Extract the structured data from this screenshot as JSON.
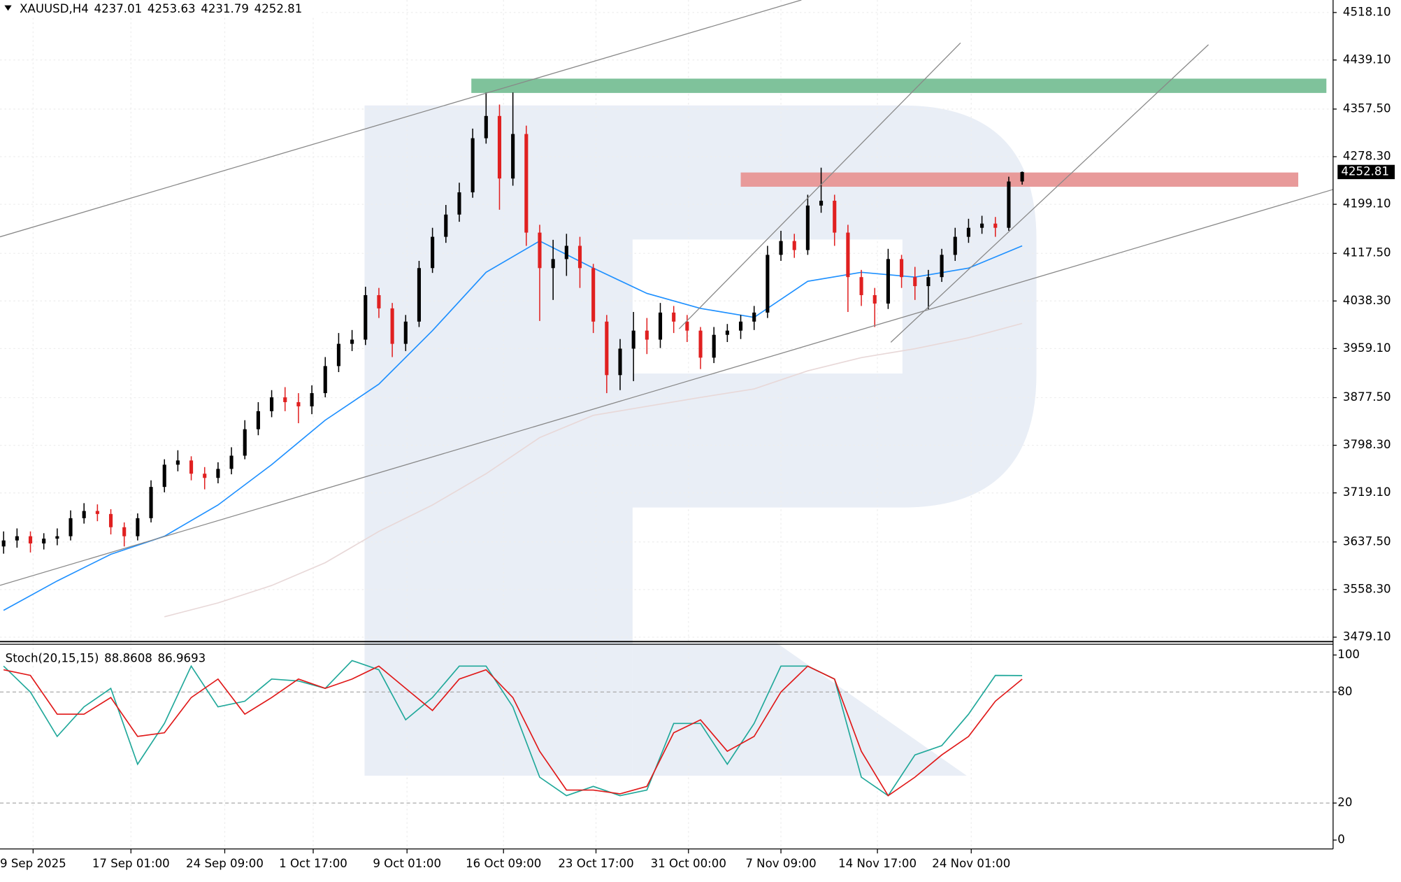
{
  "chart_data": [
    {
      "type": "candlestick",
      "symbol": "XAUUSD,H4",
      "up_color": "#000000",
      "down_color": "#e02020",
      "xlim": [
        -0.27,
        99.2
      ],
      "ylim": [
        3473.2,
        4538.9
      ],
      "yticks": [
        {
          "value": 4518.1,
          "label": "4518.10"
        },
        {
          "value": 4439.1,
          "label": "4439.10"
        },
        {
          "value": 4357.5,
          "label": "4357.50"
        },
        {
          "value": 4278.3,
          "label": "4278.30"
        },
        {
          "value": 4199.1,
          "label": "4199.10"
        },
        {
          "value": 4117.5,
          "label": "4117.50"
        },
        {
          "value": 4038.3,
          "label": "4038.30"
        },
        {
          "value": 3959.1,
          "label": "3959.10"
        },
        {
          "value": 3877.5,
          "label": "3877.50"
        },
        {
          "value": 3798.3,
          "label": "3798.30"
        },
        {
          "value": 3719.1,
          "label": "3719.10"
        },
        {
          "value": 3637.5,
          "label": "3637.50"
        },
        {
          "value": 3558.3,
          "label": "3558.30"
        },
        {
          "value": 3479.1,
          "label": "3479.10"
        }
      ],
      "xticks": [
        {
          "value": 2.2,
          "label": "9 Sep 2025"
        },
        {
          "value": 9.5,
          "label": "17 Sep 01:00"
        },
        {
          "value": 16.5,
          "label": "24 Sep 09:00"
        },
        {
          "value": 23.1,
          "label": "1 Oct 17:00"
        },
        {
          "value": 30.1,
          "label": "9 Oct 01:00"
        },
        {
          "value": 37.3,
          "label": "16 Oct 09:00"
        },
        {
          "value": 44.2,
          "label": "23 Oct 17:00"
        },
        {
          "value": 51.1,
          "label": "31 Oct 00:00"
        },
        {
          "value": 58.0,
          "label": "7 Nov 09:00"
        },
        {
          "value": 65.2,
          "label": "14 Nov 17:00"
        },
        {
          "value": 72.2,
          "label": "24 Nov 01:00"
        }
      ],
      "grid": true,
      "candles": [
        {
          "o": 3630,
          "h": 3655,
          "l": 3618,
          "c": 3640
        },
        {
          "o": 3640,
          "h": 3660,
          "l": 3628,
          "c": 3647
        },
        {
          "o": 3647,
          "h": 3655,
          "l": 3620,
          "c": 3635
        },
        {
          "o": 3635,
          "h": 3652,
          "l": 3625,
          "c": 3643
        },
        {
          "o": 3643,
          "h": 3660,
          "l": 3632,
          "c": 3647
        },
        {
          "o": 3647,
          "h": 3690,
          "l": 3640,
          "c": 3677
        },
        {
          "o": 3677,
          "h": 3702,
          "l": 3668,
          "c": 3689
        },
        {
          "o": 3689,
          "h": 3700,
          "l": 3672,
          "c": 3684
        },
        {
          "o": 3684,
          "h": 3692,
          "l": 3650,
          "c": 3662
        },
        {
          "o": 3662,
          "h": 3670,
          "l": 3630,
          "c": 3647
        },
        {
          "o": 3647,
          "h": 3685,
          "l": 3640,
          "c": 3677
        },
        {
          "o": 3677,
          "h": 3740,
          "l": 3670,
          "c": 3729
        },
        {
          "o": 3729,
          "h": 3775,
          "l": 3720,
          "c": 3766
        },
        {
          "o": 3766,
          "h": 3790,
          "l": 3755,
          "c": 3773
        },
        {
          "o": 3773,
          "h": 3780,
          "l": 3740,
          "c": 3751
        },
        {
          "o": 3751,
          "h": 3762,
          "l": 3725,
          "c": 3744
        },
        {
          "o": 3744,
          "h": 3770,
          "l": 3735,
          "c": 3759
        },
        {
          "o": 3759,
          "h": 3795,
          "l": 3750,
          "c": 3781
        },
        {
          "o": 3781,
          "h": 3840,
          "l": 3775,
          "c": 3825
        },
        {
          "o": 3825,
          "h": 3870,
          "l": 3815,
          "c": 3855
        },
        {
          "o": 3855,
          "h": 3890,
          "l": 3845,
          "c": 3878
        },
        {
          "o": 3878,
          "h": 3895,
          "l": 3855,
          "c": 3870
        },
        {
          "o": 3870,
          "h": 3885,
          "l": 3835,
          "c": 3863
        },
        {
          "o": 3863,
          "h": 3898,
          "l": 3850,
          "c": 3885
        },
        {
          "o": 3885,
          "h": 3945,
          "l": 3878,
          "c": 3930
        },
        {
          "o": 3930,
          "h": 3985,
          "l": 3920,
          "c": 3967
        },
        {
          "o": 3967,
          "h": 3990,
          "l": 3955,
          "c": 3974
        },
        {
          "o": 3974,
          "h": 4062,
          "l": 3965,
          "c": 4048
        },
        {
          "o": 4048,
          "h": 4060,
          "l": 4010,
          "c": 4026
        },
        {
          "o": 4026,
          "h": 4035,
          "l": 3945,
          "c": 3967
        },
        {
          "o": 3967,
          "h": 4015,
          "l": 3955,
          "c": 4004
        },
        {
          "o": 4004,
          "h": 4105,
          "l": 3995,
          "c": 4093
        },
        {
          "o": 4093,
          "h": 4160,
          "l": 4085,
          "c": 4145
        },
        {
          "o": 4145,
          "h": 4198,
          "l": 4135,
          "c": 4182
        },
        {
          "o": 4182,
          "h": 4235,
          "l": 4170,
          "c": 4219
        },
        {
          "o": 4219,
          "h": 4325,
          "l": 4210,
          "c": 4309
        },
        {
          "o": 4309,
          "h": 4385,
          "l": 4300,
          "c": 4346
        },
        {
          "o": 4346,
          "h": 4365,
          "l": 4190,
          "c": 4242
        },
        {
          "o": 4242,
          "h": 4385,
          "l": 4230,
          "c": 4316
        },
        {
          "o": 4316,
          "h": 4330,
          "l": 4130,
          "c": 4152
        },
        {
          "o": 4152,
          "h": 4165,
          "l": 4005,
          "c": 4093
        },
        {
          "o": 4093,
          "h": 4140,
          "l": 4040,
          "c": 4108
        },
        {
          "o": 4108,
          "h": 4150,
          "l": 4080,
          "c": 4130
        },
        {
          "o": 4130,
          "h": 4145,
          "l": 4060,
          "c": 4093
        },
        {
          "o": 4093,
          "h": 4100,
          "l": 3985,
          "c": 4004
        },
        {
          "o": 4004,
          "h": 4015,
          "l": 3885,
          "c": 3915
        },
        {
          "o": 3915,
          "h": 3975,
          "l": 3890,
          "c": 3959
        },
        {
          "o": 3959,
          "h": 4020,
          "l": 3905,
          "c": 3989
        },
        {
          "o": 3989,
          "h": 4010,
          "l": 3950,
          "c": 3974
        },
        {
          "o": 3974,
          "h": 4035,
          "l": 3960,
          "c": 4019
        },
        {
          "o": 4019,
          "h": 4030,
          "l": 3985,
          "c": 4004
        },
        {
          "o": 4004,
          "h": 4015,
          "l": 3970,
          "c": 3989
        },
        {
          "o": 3989,
          "h": 3995,
          "l": 3925,
          "c": 3944
        },
        {
          "o": 3944,
          "h": 3995,
          "l": 3935,
          "c": 3982
        },
        {
          "o": 3982,
          "h": 4000,
          "l": 3970,
          "c": 3989
        },
        {
          "o": 3989,
          "h": 4015,
          "l": 3975,
          "c": 4004
        },
        {
          "o": 4004,
          "h": 4030,
          "l": 3990,
          "c": 4019
        },
        {
          "o": 4019,
          "h": 4130,
          "l": 4010,
          "c": 4115
        },
        {
          "o": 4115,
          "h": 4155,
          "l": 4105,
          "c": 4138
        },
        {
          "o": 4138,
          "h": 4150,
          "l": 4110,
          "c": 4123
        },
        {
          "o": 4123,
          "h": 4215,
          "l": 4115,
          "c": 4197
        },
        {
          "o": 4197,
          "h": 4260,
          "l": 4185,
          "c": 4205
        },
        {
          "o": 4205,
          "h": 4215,
          "l": 4130,
          "c": 4152
        },
        {
          "o": 4152,
          "h": 4165,
          "l": 4020,
          "c": 4078
        },
        {
          "o": 4078,
          "h": 4090,
          "l": 4030,
          "c": 4048
        },
        {
          "o": 4048,
          "h": 4060,
          "l": 3995,
          "c": 4034
        },
        {
          "o": 4034,
          "h": 4125,
          "l": 4025,
          "c": 4108
        },
        {
          "o": 4108,
          "h": 4115,
          "l": 4060,
          "c": 4078
        },
        {
          "o": 4078,
          "h": 4095,
          "l": 4040,
          "c": 4063
        },
        {
          "o": 4063,
          "h": 4090,
          "l": 4025,
          "c": 4078
        },
        {
          "o": 4078,
          "h": 4125,
          "l": 4070,
          "c": 4115
        },
        {
          "o": 4115,
          "h": 4160,
          "l": 4105,
          "c": 4145
        },
        {
          "o": 4145,
          "h": 4175,
          "l": 4135,
          "c": 4160
        },
        {
          "o": 4160,
          "h": 4180,
          "l": 4150,
          "c": 4167
        },
        {
          "o": 4167,
          "h": 4178,
          "l": 4145,
          "c": 4160
        },
        {
          "o": 4160,
          "h": 4245,
          "l": 4155,
          "c": 4237.01
        },
        {
          "o": 4237.01,
          "h": 4253.63,
          "l": 4231.79,
          "c": 4252.81
        }
      ],
      "series": [
        {
          "color": "#1e90ff",
          "x": [
            0,
            4,
            8,
            12,
            16,
            20,
            24,
            28,
            32,
            36,
            40,
            44,
            48,
            52,
            56,
            60,
            64,
            68,
            72,
            76
          ],
          "values": [
            3523.7,
            3572.7,
            3617,
            3647,
            3699,
            3766,
            3840,
            3900,
            3989,
            4086,
            4138,
            4093,
            4051,
            4026,
            4011,
            4071,
            4086,
            4078,
            4093,
            4130
          ]
        },
        {
          "color": "#e8d8d8",
          "x": [
            12,
            16,
            20,
            24,
            28,
            32,
            36,
            40,
            44,
            48,
            52,
            56,
            60,
            64,
            68,
            72,
            76
          ],
          "values": [
            3513,
            3536,
            3565,
            3603,
            3655,
            3699,
            3751,
            3811,
            3848,
            3863,
            3878,
            3892,
            3922,
            3944,
            3959,
            3977,
            4001
          ]
        }
      ],
      "zones": [
        {
          "low": 4384.3,
          "high": 4408.1,
          "start": 34.9,
          "end": 98.7,
          "color": "#7fc29b"
        },
        {
          "low": 4228.3,
          "high": 4252,
          "start": 55,
          "end": 96.6,
          "color": "#e89a9a"
        }
      ],
      "trendlines": [
        {
          "points": [
            [
              -0.27,
              4145.0
            ],
            [
              59.53,
              4538.9
            ]
          ]
        },
        {
          "points": [
            [
              -0.27,
              3565.3
            ],
            [
              99.2,
              4223.8
            ]
          ]
        },
        {
          "points": [
            [
              50.4,
              3991.9
            ],
            [
              71.4,
              4467.6
            ]
          ]
        },
        {
          "points": [
            [
              66.2,
              3969.6
            ],
            [
              89.9,
              4464.6
            ]
          ]
        }
      ]
    },
    {
      "type": "line",
      "title": "Stoch(20,15,15)",
      "xlim": [
        -0.27,
        99.2
      ],
      "ylim": [
        -4.8,
        105.3
      ],
      "yticks": [
        100,
        80,
        20,
        0
      ],
      "levels": [
        80,
        20
      ],
      "x": [
        0,
        2,
        4,
        6,
        8,
        10,
        12,
        14,
        16,
        18,
        20,
        22,
        24,
        26,
        28,
        30,
        32,
        34,
        36,
        38,
        40,
        42,
        44,
        46,
        48,
        50,
        52,
        54,
        56,
        58,
        60,
        62,
        64,
        66,
        68,
        70,
        72,
        74,
        76
      ],
      "series": [
        {
          "color": "#20a89a",
          "values": [
            94,
            80,
            56,
            72,
            82,
            41,
            63,
            94,
            72,
            75,
            87,
            86,
            82,
            97,
            92,
            65,
            77,
            94,
            94,
            72,
            34,
            24,
            29,
            24,
            27,
            63,
            63,
            41,
            63,
            94,
            94,
            87,
            34,
            24,
            46,
            51,
            68,
            89,
            88.8608
          ]
        },
        {
          "color": "#e01818",
          "values": [
            92,
            89,
            68,
            68,
            77,
            56,
            58,
            77,
            87,
            68,
            77,
            87,
            82,
            87,
            94,
            82,
            70,
            87,
            92,
            77,
            48,
            27,
            27,
            25,
            29,
            58,
            65,
            48,
            56,
            80,
            94,
            87,
            48,
            24,
            34,
            46,
            56,
            75,
            86.9693
          ]
        }
      ]
    }
  ]
}
